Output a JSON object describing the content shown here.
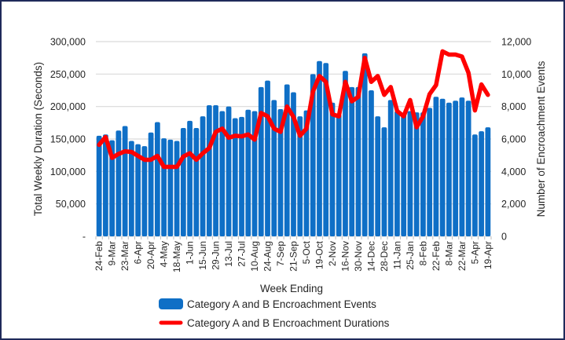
{
  "chart_data": {
    "type": "bar",
    "title": "",
    "xlabel": "Week Ending",
    "ylabel": "Total Weekly Duration (Seconds)",
    "y2label": "Number of Encroachment Events",
    "ylim": [
      0,
      300000
    ],
    "y2lim": [
      0,
      12000
    ],
    "yticks": [
      "-",
      "50,000",
      "100,000",
      "150,000",
      "200,000",
      "250,000",
      "300,000"
    ],
    "y2ticks": [
      "0",
      "2,000",
      "4,000",
      "6,000",
      "8,000",
      "10,000",
      "12,000"
    ],
    "grid": true,
    "legend_position": "bottom",
    "x_tick_labels": [
      "24-Feb",
      "9-Mar",
      "23-Mar",
      "6-Apr",
      "20-Apr",
      "4-May",
      "18-May",
      "1-Jun",
      "15-Jun",
      "29-Jun",
      "13-Jul",
      "27-Jul",
      "10-Aug",
      "24-Aug",
      "7-Sep",
      "21-Sep",
      "5-Oct",
      "19-Oct",
      "2-Nov",
      "16-Nov",
      "30-Nov",
      "14-Dec",
      "28-Dec",
      "11-Jan",
      "25-Jan",
      "8-Feb",
      "22-Feb",
      "8-Mar",
      "22-Mar",
      "5-Apr",
      "19-Apr"
    ],
    "x_tick_every": 2,
    "series": [
      {
        "name": "Category A and B Encroachment Events",
        "type": "bar",
        "axis": "right",
        "color": "#0f6fc6",
        "values": [
          6200,
          6280,
          5920,
          6520,
          6800,
          5880,
          5680,
          5560,
          6400,
          7040,
          6040,
          5960,
          5880,
          6680,
          7120,
          6680,
          7400,
          8080,
          8080,
          7720,
          8000,
          7280,
          7360,
          7800,
          7720,
          9200,
          9600,
          8400,
          7840,
          9360,
          8880,
          7400,
          7760,
          10000,
          10800,
          10680,
          8240,
          7520,
          10200,
          9200,
          9200,
          11280,
          9000,
          7400,
          6720,
          8400,
          7720,
          7560,
          7720,
          7640,
          7640,
          7920,
          8600,
          8480,
          8240,
          8360,
          8560,
          8360,
          6280,
          6480,
          6720
        ]
      },
      {
        "name": "Category A and B Encroachment Durations",
        "type": "line",
        "axis": "left",
        "color": "#ff0000",
        "values": [
          141000,
          153000,
          121000,
          127000,
          131000,
          130000,
          124000,
          118000,
          118000,
          124000,
          107000,
          107000,
          107000,
          123000,
          128000,
          118000,
          128000,
          136000,
          161000,
          166000,
          152000,
          155000,
          154000,
          157000,
          149000,
          190000,
          185000,
          166000,
          161000,
          200000,
          184000,
          155000,
          166000,
          223000,
          247000,
          238000,
          188000,
          185000,
          238000,
          208000,
          215000,
          275000,
          238000,
          247000,
          218000,
          230000,
          193000,
          185000,
          210000,
          168000,
          185000,
          219000,
          233000,
          285000,
          280000,
          280000,
          277000,
          252000,
          194000,
          234000,
          218000
        ]
      }
    ]
  }
}
